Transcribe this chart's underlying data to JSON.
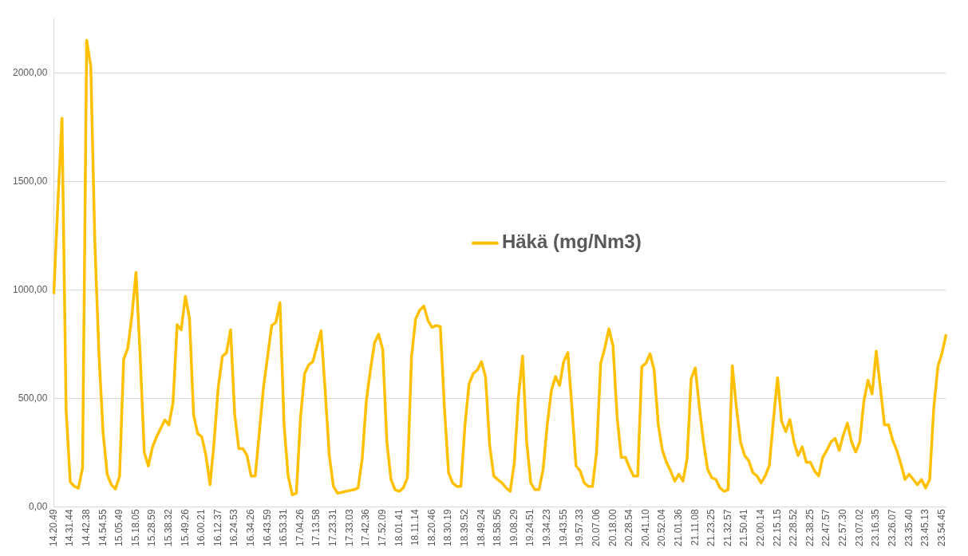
{
  "chart_data": {
    "type": "line",
    "categories": [
      "14.20.49",
      null,
      null,
      null,
      "14.31.44",
      null,
      null,
      null,
      "14.42.38",
      null,
      null,
      null,
      "14.54.55",
      null,
      null,
      null,
      "15.05.49",
      null,
      null,
      null,
      "15.18.05",
      null,
      null,
      null,
      "15.28.59",
      null,
      null,
      null,
      "15.38.32",
      null,
      null,
      null,
      "15.49.26",
      null,
      null,
      null,
      "16.00.21",
      null,
      null,
      null,
      "16.12.37",
      null,
      null,
      null,
      "16.24.53",
      null,
      null,
      null,
      "16.34.26",
      null,
      null,
      null,
      "16.43.59",
      null,
      null,
      null,
      "16.53.31",
      null,
      null,
      null,
      "17.04.26",
      null,
      null,
      null,
      "17.13.58",
      null,
      null,
      null,
      "17.23.31",
      null,
      null,
      null,
      "17.33.03",
      null,
      null,
      null,
      "17.42.36",
      null,
      null,
      null,
      "17.52.09",
      null,
      null,
      null,
      "18.01.41",
      null,
      null,
      null,
      "18.11.14",
      null,
      null,
      null,
      "18.20.46",
      null,
      null,
      null,
      "18.30.19",
      null,
      null,
      null,
      "18.39.52",
      null,
      null,
      null,
      "18.49.24",
      null,
      null,
      null,
      "18.58.56",
      null,
      null,
      null,
      "19.08.29",
      null,
      null,
      null,
      "19.24.51",
      null,
      null,
      null,
      "19.34.23",
      null,
      null,
      null,
      "19.43.55",
      null,
      null,
      null,
      "19.57.33",
      null,
      null,
      null,
      "20.07.06",
      null,
      null,
      null,
      "20.18.00",
      null,
      null,
      null,
      "20.28.54",
      null,
      null,
      null,
      "20.41.10",
      null,
      null,
      null,
      "20.52.04",
      null,
      null,
      null,
      "21.01.36",
      null,
      null,
      null,
      "21.11.08",
      null,
      null,
      null,
      "21.23.25",
      null,
      null,
      null,
      "21.32.57",
      null,
      null,
      null,
      "21.50.41",
      null,
      null,
      null,
      "22.00.14",
      null,
      null,
      null,
      "22.15.15",
      null,
      null,
      null,
      "22.28.52",
      null,
      null,
      null,
      "22.38.25",
      null,
      null,
      null,
      "22.47.57",
      null,
      null,
      null,
      "22.57.30",
      null,
      null,
      null,
      "23.07.02",
      null,
      null,
      null,
      "23.16.35",
      null,
      null,
      null,
      "23.26.07",
      null,
      null,
      null,
      "23.35.40",
      null,
      null,
      null,
      "23.45.13",
      null,
      null,
      null,
      "23.54.45",
      null
    ],
    "series": [
      {
        "name": "Häkä (mg/Nm3)",
        "color": "#ffc000",
        "values": [
          980,
          1400,
          1790,
          450,
          115,
          94,
          86,
          180,
          2150,
          2030,
          1210,
          700,
          340,
          149,
          102,
          82,
          141,
          680,
          730,
          880,
          1080,
          700,
          251,
          188,
          275,
          322,
          361,
          400,
          377,
          480,
          839,
          816,
          970,
          870,
          424,
          337,
          322,
          236,
          102,
          300,
          551,
          693,
          710,
          815,
          425,
          268,
          268,
          236,
          142,
          142,
          346,
          551,
          693,
          835,
          850,
          940,
          378,
          142,
          55,
          63,
          410,
          614,
          654,
          669,
          740,
          811,
          535,
          236,
          94,
          63,
          66,
          71,
          75,
          79,
          87,
          220,
          488,
          630,
          756,
          795,
          724,
          299,
          126,
          79,
          71,
          87,
          134,
          693,
          866,
          906,
          925,
          858,
          827,
          835,
          830,
          457,
          157,
          110,
          94,
          94,
          378,
          567,
          614,
          630,
          669,
          598,
          283,
          142,
          125,
          110,
          87,
          71,
          205,
          504,
          695,
          299,
          110,
          79,
          79,
          173,
          378,
          535,
          600,
          559,
          669,
          710,
          457,
          189,
          165,
          110,
          94,
          94,
          252,
          661,
          732,
          820,
          740,
          410,
          228,
          228,
          181,
          142,
          142,
          646,
          661,
          705,
          630,
          378,
          260,
          205,
          165,
          118,
          150,
          118,
          220,
          591,
          640,
          457,
          299,
          173,
          134,
          126,
          87,
          71,
          79,
          650,
          457,
          299,
          236,
          213,
          157,
          142,
          110,
          142,
          189,
          400,
          595,
          394,
          346,
          402,
          299,
          236,
          276,
          205,
          205,
          165,
          142,
          228,
          260,
          299,
          315,
          260,
          331,
          386,
          299,
          252,
          299,
          488,
          583,
          520,
          717,
          551,
          378,
          378,
          307,
          260,
          197,
          126,
          150,
          126,
          102,
          126,
          87,
          126,
          457,
          646,
          709,
          795
        ]
      }
    ],
    "ylim": [
      0,
      2250
    ],
    "yticks": [
      {
        "value": 0,
        "label": "0,00"
      },
      {
        "value": 500,
        "label": "500,00"
      },
      {
        "value": 1000,
        "label": "1000,00"
      },
      {
        "value": 1500,
        "label": "1500,00"
      },
      {
        "value": 2000,
        "label": "2000,00"
      }
    ],
    "grid": "y",
    "legend": "center"
  }
}
